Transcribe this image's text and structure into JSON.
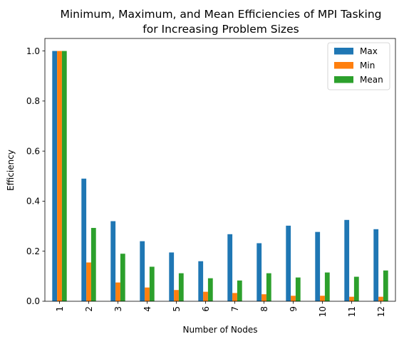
{
  "chart_data": {
    "type": "bar",
    "title_line1": "Minimum, Maximum, and Mean Efficiencies of MPI Tasking",
    "title_line2": "for Increasing Problem Sizes",
    "xlabel": "Number of Nodes",
    "ylabel": "Efficiency",
    "categories": [
      "1",
      "2",
      "3",
      "4",
      "5",
      "6",
      "7",
      "8",
      "9",
      "10",
      "11",
      "12"
    ],
    "ylim": [
      0,
      1.05
    ],
    "yticks": [
      "0.0",
      "0.2",
      "0.4",
      "0.6",
      "0.8",
      "1.0"
    ],
    "legend_position": "top-right",
    "grid": false,
    "series": [
      {
        "name": "Max",
        "color": "#1f77b4",
        "values": [
          1.0,
          0.49,
          0.32,
          0.24,
          0.195,
          0.16,
          0.268,
          0.232,
          0.302,
          0.277,
          0.325,
          0.288
        ]
      },
      {
        "name": "Min",
        "color": "#ff7f0e",
        "values": [
          1.0,
          0.155,
          0.075,
          0.055,
          0.045,
          0.038,
          0.033,
          0.028,
          0.022,
          0.022,
          0.018,
          0.018
        ]
      },
      {
        "name": "Mean",
        "color": "#2ca02c",
        "values": [
          1.0,
          0.293,
          0.19,
          0.138,
          0.112,
          0.092,
          0.083,
          0.112,
          0.095,
          0.115,
          0.098,
          0.123
        ]
      }
    ]
  }
}
